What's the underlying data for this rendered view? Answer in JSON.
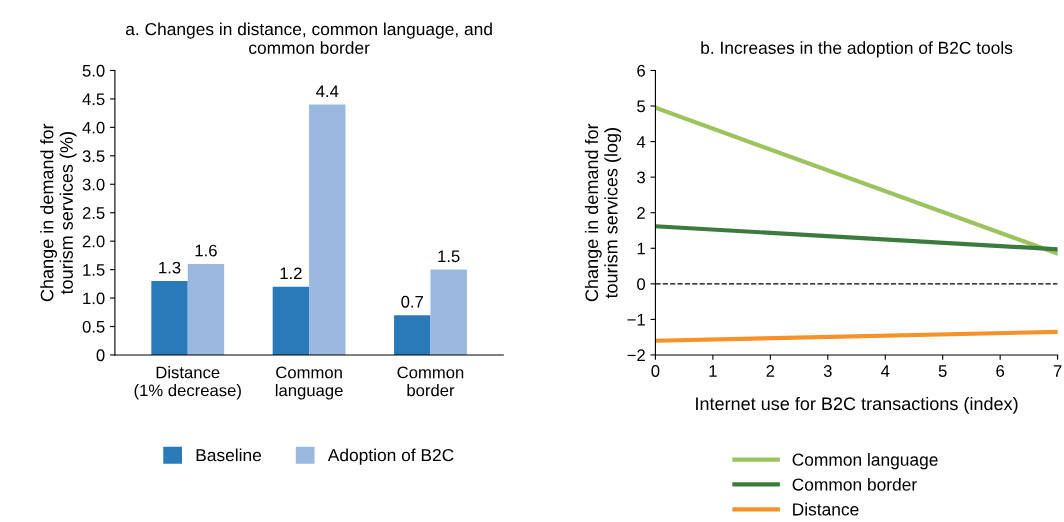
{
  "chart_data": [
    {
      "type": "bar",
      "title": "a. Changes in distance, common language, and\ncommon border",
      "ylabel": "Change in demand for\ntourism services (%)",
      "categories": [
        "Distance\n(1% decrease)",
        "Common\nlanguage",
        "Common\nborder"
      ],
      "series": [
        {
          "name": "Baseline",
          "color": "#2a7ab9",
          "values": [
            1.3,
            1.2,
            0.7
          ]
        },
        {
          "name": "Adoption of B2C",
          "color": "#9bb9e0",
          "values": [
            1.6,
            4.4,
            1.5
          ]
        }
      ],
      "ylim": [
        0,
        5
      ],
      "yticks": [
        0,
        0.5,
        {
          "value": 1,
          "label": "1.0"
        },
        1.5,
        {
          "value": 2,
          "label": "2.0"
        },
        2.5,
        {
          "value": 3,
          "label": "3.0"
        },
        3.5,
        {
          "value": 4,
          "label": "4.0"
        },
        4.5,
        {
          "value": 5,
          "label": "5.0"
        }
      ],
      "data_labels": true,
      "legend": "bottom",
      "grid": false
    },
    {
      "type": "line",
      "title": "b. Increases in the adoption of B2C tools",
      "xlabel": "Internet use for B2C transactions (index)",
      "ylabel": "Change in demand for\ntourism services (log)",
      "x": [
        0,
        7
      ],
      "series": [
        {
          "name": "Common language",
          "color": "#9dc35f",
          "values": [
            4.95,
            0.85
          ]
        },
        {
          "name": "Common border",
          "color": "#3c7a3e",
          "values": [
            1.62,
            0.97
          ]
        },
        {
          "name": "Distance",
          "color": "#f7922a",
          "values": [
            -1.6,
            -1.35
          ]
        }
      ],
      "xlim": [
        0,
        7
      ],
      "xticks": [
        0,
        1,
        2,
        3,
        4,
        5,
        6,
        7
      ],
      "ylim": [
        -2,
        6
      ],
      "yticks": [
        {
          "value": -2,
          "label": "−2"
        },
        {
          "value": -1,
          "label": "−1"
        },
        0,
        1,
        2,
        3,
        4,
        5,
        6
      ],
      "ref_lines": [
        {
          "axis": "y",
          "value": 0,
          "line_style": "dashed",
          "color": "#000000"
        }
      ],
      "legend": "bottom",
      "grid": false,
      "marker": "none",
      "line_style": "solid"
    }
  ]
}
